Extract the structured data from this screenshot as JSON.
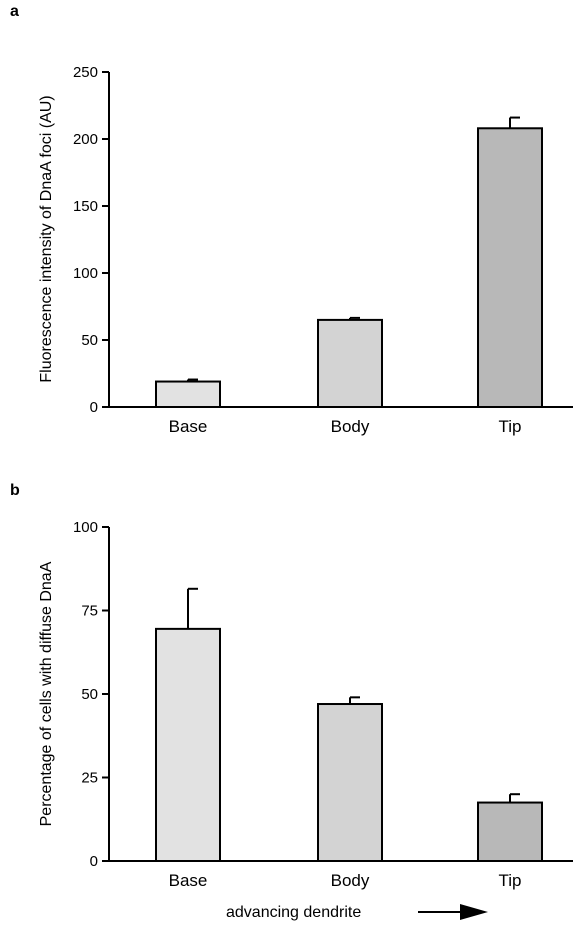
{
  "panels": [
    "a",
    "b"
  ],
  "footer": {
    "label": "advancing dendrite",
    "arrow_icon": "right-arrow-icon"
  },
  "chart_data": [
    {
      "type": "bar",
      "panel": "a",
      "title": "",
      "xlabel": "",
      "ylabel": "Fluorescence intensity of DnaA foci (AU)",
      "categories": [
        "Base",
        "Body",
        "Tip"
      ],
      "values": [
        19,
        65,
        208
      ],
      "errors": [
        1.5,
        1.5,
        8
      ],
      "colors": [
        "#e2e2e2",
        "#d3d3d3",
        "#b8b8b8"
      ],
      "ylim": [
        0,
        250
      ],
      "yticks": [
        0,
        50,
        100,
        150,
        200,
        250
      ],
      "grid": false,
      "legend": "none"
    },
    {
      "type": "bar",
      "panel": "b",
      "title": "",
      "xlabel": "",
      "ylabel": "Percentage of cells with diffuse DnaA",
      "categories": [
        "Base",
        "Body",
        "Tip"
      ],
      "values": [
        69.5,
        47,
        17.5
      ],
      "errors": [
        12,
        2,
        2.5
      ],
      "colors": [
        "#e2e2e2",
        "#d3d3d3",
        "#b8b8b8"
      ],
      "ylim": [
        0,
        100
      ],
      "yticks": [
        0,
        25,
        50,
        75,
        100
      ],
      "grid": false,
      "legend": "none"
    }
  ]
}
